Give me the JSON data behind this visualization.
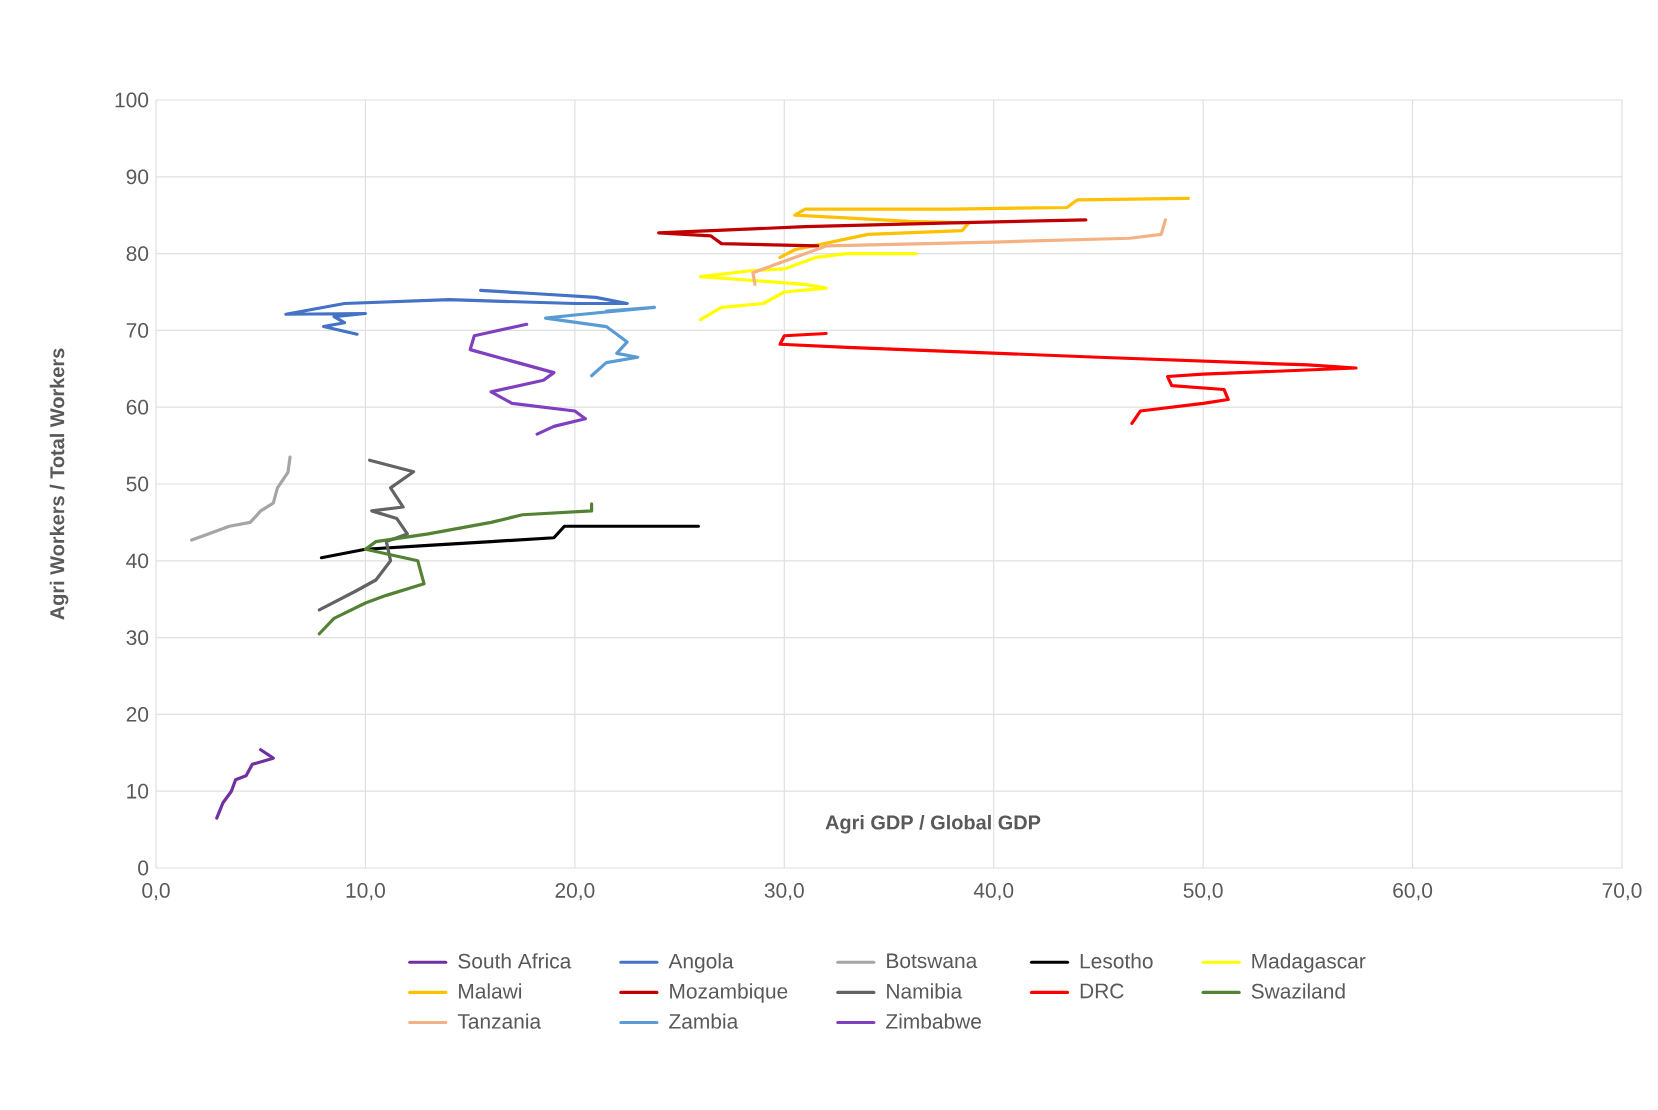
{
  "chart_data": {
    "type": "line",
    "xlabel": "Agri GDP / Global GDP",
    "ylabel": "Agri Workers / Total Workers",
    "xlim": [
      0,
      70
    ],
    "ylim": [
      0,
      100
    ],
    "xticks": [
      {
        "value": 0,
        "label": "0,0"
      },
      {
        "value": 10,
        "label": "10,0"
      },
      {
        "value": 20,
        "label": "20,0"
      },
      {
        "value": 30,
        "label": "30,0"
      },
      {
        "value": 40,
        "label": "40,0"
      },
      {
        "value": 50,
        "label": "50,0"
      },
      {
        "value": 60,
        "label": "60,0"
      },
      {
        "value": 70,
        "label": "70,0"
      }
    ],
    "yticks": [
      0,
      10,
      20,
      30,
      40,
      50,
      60,
      70,
      80,
      90,
      100
    ],
    "grid": true,
    "legend": "bottom",
    "series": [
      {
        "name": "South Africa",
        "color": "#7030a0",
        "x": [
          5.0,
          5.6,
          4.6,
          4.3,
          3.8,
          3.6,
          3.2,
          2.9
        ],
        "values": [
          15.4,
          14.3,
          13.5,
          12.0,
          11.5,
          10.0,
          8.5,
          6.5
        ]
      },
      {
        "name": "Angola",
        "color": "#4472c4",
        "x": [
          15.5,
          18,
          21,
          22.5,
          20,
          14,
          9,
          6.2,
          10,
          8.5,
          9,
          8,
          9.6
        ],
        "values": [
          75.2,
          74.8,
          74.3,
          73.5,
          73.5,
          74.0,
          73.5,
          72.1,
          72.2,
          71.8,
          71.0,
          70.5,
          69.5
        ]
      },
      {
        "name": "Botswana",
        "color": "#a5a5a5",
        "x": [
          6.4,
          6.3,
          5.8,
          5.6,
          5.0,
          4.5,
          3.5,
          2.5,
          1.7
        ],
        "values": [
          53.5,
          51.5,
          49.5,
          47.5,
          46.5,
          45.0,
          44.5,
          43.5,
          42.7
        ]
      },
      {
        "name": "Lesotho",
        "color": "#000000",
        "x": [
          25.9,
          19.5,
          19,
          16,
          13,
          10,
          7.9
        ],
        "values": [
          44.5,
          44.5,
          43,
          42.5,
          42,
          41.5,
          40.4
        ]
      },
      {
        "name": "Madagascar",
        "color": "#ffff00",
        "x": [
          36.3,
          33,
          31.5,
          30,
          28.5,
          26,
          28.5,
          31,
          32,
          30,
          29,
          27,
          26.0
        ],
        "values": [
          80,
          80,
          79.5,
          78,
          77.8,
          77,
          76.5,
          76,
          75.5,
          75,
          73.5,
          73,
          71.4
        ]
      },
      {
        "name": "Malawi",
        "color": "#ffc000",
        "x": [
          49.3,
          44,
          43.5,
          38,
          31,
          30.5,
          36,
          38.8,
          38.5,
          34,
          30.5,
          29.8
        ],
        "values": [
          87.2,
          87,
          86,
          85.8,
          85.8,
          85,
          84.2,
          84,
          83,
          82.5,
          80.5,
          79.5
        ]
      },
      {
        "name": "Mozambique",
        "color": "#c00000",
        "x": [
          44.4,
          38,
          31,
          24,
          26.5,
          27,
          31.6
        ],
        "values": [
          84.4,
          84,
          83.5,
          82.7,
          82.3,
          81.3,
          81
        ]
      },
      {
        "name": "Namibia",
        "color": "#636363",
        "x": [
          10.2,
          12.3,
          11.2,
          11.8,
          10.3,
          11.5,
          12.0,
          11.0,
          11.2,
          10.5,
          9.5,
          7.8
        ],
        "values": [
          53.1,
          51.6,
          49.5,
          47.0,
          46.5,
          45.5,
          43.5,
          42.5,
          40.0,
          37.5,
          36.0,
          33.6
        ]
      },
      {
        "name": "DRC",
        "color": "#ff0000",
        "x": [
          32.0,
          30,
          29.8,
          33,
          45,
          55,
          57.3,
          50,
          48.3,
          48.5,
          51,
          51.2,
          50,
          47,
          46.6
        ],
        "values": [
          69.6,
          69.3,
          68.2,
          67.8,
          66.5,
          65.5,
          65.1,
          64.3,
          64,
          62.8,
          62.3,
          61,
          60.5,
          59.5,
          57.9
        ]
      },
      {
        "name": "Swaziland",
        "color": "#548235",
        "x": [
          20.8,
          20.8,
          17.5,
          16,
          13,
          10.5,
          10,
          12.5,
          12.8,
          11,
          10,
          8.5,
          7.8
        ],
        "values": [
          47.4,
          46.5,
          46,
          45,
          43.5,
          42.5,
          41.5,
          40,
          37,
          35.5,
          34.5,
          32.5,
          30.5
        ]
      },
      {
        "name": "Tanzania",
        "color": "#f4b183",
        "x": [
          48.2,
          48,
          46.5,
          40,
          32,
          30.5,
          29.5,
          28.5,
          28.6
        ],
        "values": [
          84.4,
          82.5,
          82,
          81.5,
          81.0,
          79.5,
          78.5,
          77.5,
          76
        ]
      },
      {
        "name": "Zambia",
        "color": "#5b9bd5",
        "x": [
          21.5,
          23.8,
          20,
          18.6,
          21.5,
          22.5,
          22.0,
          23.0,
          21.5,
          20.8
        ],
        "values": [
          72.5,
          73.0,
          72.0,
          71.6,
          70.5,
          68.5,
          67.0,
          66.5,
          65.8,
          64.1
        ]
      },
      {
        "name": "Zimbabwe",
        "color": "#7f3fbf",
        "x": [
          17.7,
          15.2,
          15.0,
          17,
          19,
          18.5,
          16,
          17,
          20,
          20.5,
          19,
          18.2
        ],
        "values": [
          70.8,
          69.3,
          67.5,
          66,
          64.5,
          63.5,
          62,
          60.5,
          59.5,
          58.5,
          57.5,
          56.5
        ]
      }
    ]
  }
}
